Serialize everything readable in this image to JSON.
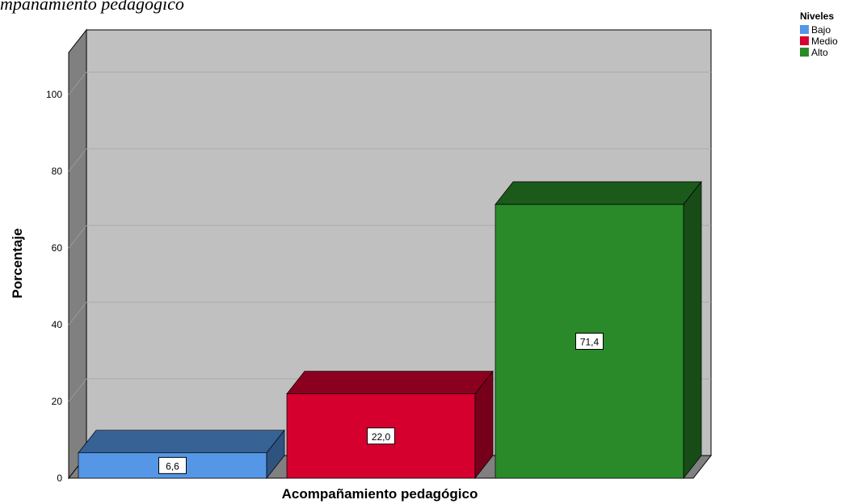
{
  "chart_data": {
    "type": "bar3d",
    "title": "mpañamiento pedagógico",
    "x_label": "Acompañamiento pedagógico",
    "y_label": "Porcentaje",
    "legend_title": "Niveles",
    "legend": "top-right",
    "series": [
      {
        "name": "Bajo",
        "color": "#5597e6",
        "values": [
          6.6
        ],
        "value_labels": [
          "6,6"
        ]
      },
      {
        "name": "Medio",
        "color": "#d6002f",
        "values": [
          22.0
        ],
        "value_labels": [
          "22,0"
        ]
      },
      {
        "name": "Alto",
        "color": "#2a8a2a",
        "values": [
          71.4
        ],
        "value_labels": [
          "71,4"
        ]
      }
    ],
    "ylim": [
      0,
      111
    ],
    "yticks": [
      0,
      20,
      40,
      60,
      80,
      100
    ],
    "grid": true
  }
}
